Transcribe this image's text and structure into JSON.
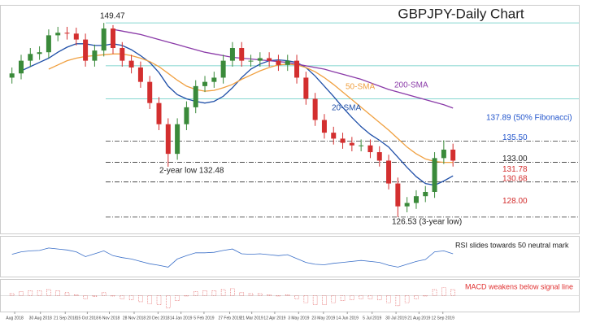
{
  "chart_data": {
    "type": "candlestick",
    "title": "GBPJPY-Daily Chart",
    "xlim": [
      -1.3,
      61.7
    ],
    "ylim": [
      124.6,
      151.4
    ],
    "xticks": [
      {
        "value": 0.3,
        "label": "Aug 2018"
      },
      {
        "value": 3.1,
        "label": "30 Aug 2018"
      },
      {
        "value": 5.8,
        "label": "21 Sep 2018"
      },
      {
        "value": 8.2,
        "label": "15 Oct 2018"
      },
      {
        "value": 10.6,
        "label": "6 Nov 2018"
      },
      {
        "value": 13.3,
        "label": "28 Nov 2018"
      },
      {
        "value": 15.9,
        "label": "20 Dec 2018"
      },
      {
        "value": 18.4,
        "label": "14 Jan 2019"
      },
      {
        "value": 20.9,
        "label": "5 Feb 2019"
      },
      {
        "value": 23.7,
        "label": "27 Feb 2019"
      },
      {
        "value": 26.1,
        "label": "21 Mar 2019"
      },
      {
        "value": 28.6,
        "label": "12 Apr 2019"
      },
      {
        "value": 31.2,
        "label": "3 May 2019"
      },
      {
        "value": 33.9,
        "label": "23 May 2019"
      },
      {
        "value": 36.5,
        "label": "14 Jun 2019"
      },
      {
        "value": 39.2,
        "label": "5 Jul 2019"
      },
      {
        "value": 41.8,
        "label": "30 Jul 2019"
      },
      {
        "value": 44.3,
        "label": "21 Aug 2019"
      },
      {
        "value": 46.9,
        "label": "12 Sep 2019"
      }
    ],
    "candles": {
      "up_color": "#3a8a3a",
      "down_color": "#d32f2f",
      "open": [
        143,
        143.5,
        145,
        145.8,
        146,
        148,
        148.3,
        148.2,
        147.5,
        145,
        146.2,
        148.8,
        146.5,
        145,
        144.2,
        142.5,
        140,
        137.5,
        134,
        137.5,
        139.5,
        142,
        142.5,
        143,
        145,
        146.5,
        145,
        145,
        145.3,
        145,
        144.5,
        145,
        143,
        140.5,
        138,
        136.5,
        135.8,
        135.3,
        135,
        135,
        134.2,
        133.2,
        130.5,
        127.8,
        128.2,
        129,
        129.5,
        133.5,
        134.5
      ],
      "high": [
        144.2,
        145.7,
        146.5,
        146.7,
        148.7,
        149,
        149,
        148.9,
        148.2,
        146.9,
        149.47,
        149.2,
        147.2,
        145.7,
        144.9,
        143.2,
        140.7,
        138.2,
        138.2,
        140.2,
        142.7,
        143.2,
        143.7,
        145.7,
        147.2,
        147.2,
        145.7,
        146,
        146,
        145.7,
        145.7,
        145.7,
        143.7,
        141.2,
        138.7,
        137.2,
        136.5,
        136,
        135.7,
        135.7,
        134.9,
        133.9,
        131.2,
        128.9,
        129.7,
        130.2,
        134.2,
        135.6,
        135.2
      ],
      "low": [
        142.3,
        142.8,
        144.3,
        145.1,
        145.3,
        147.3,
        147.5,
        146.8,
        144.3,
        144.3,
        145.5,
        145.8,
        144.3,
        143.5,
        141.8,
        139.3,
        136.8,
        132.48,
        133.3,
        136.8,
        138.8,
        141.3,
        141.8,
        142.3,
        144.3,
        144.3,
        144.3,
        144.3,
        144.3,
        143.8,
        143.8,
        142.3,
        139.8,
        137.3,
        135.8,
        135.1,
        134.6,
        134.3,
        134.3,
        133.5,
        132.5,
        129.8,
        126.53,
        127.1,
        127.5,
        128.3,
        128.8,
        132.8,
        132.5
      ],
      "close": [
        143.5,
        145,
        145.8,
        146,
        148,
        148.3,
        148.2,
        147.5,
        145,
        146.2,
        148.8,
        146.5,
        145,
        144.2,
        142.5,
        140,
        137.5,
        134,
        137.5,
        139.5,
        142,
        142.5,
        143,
        145,
        146.5,
        145,
        145,
        145.3,
        145,
        144.5,
        145,
        143,
        140.5,
        138,
        136.5,
        135.8,
        135.3,
        135,
        135,
        134.2,
        133.2,
        130.5,
        127.8,
        128.2,
        129,
        129.5,
        133.5,
        134.5,
        133.2
      ]
    },
    "series": [
      {
        "name": "20-SMA",
        "color": "#1f4fa8",
        "values": [
          null,
          143.8,
          144.3,
          144.8,
          145.3,
          146,
          146.6,
          147,
          147,
          146.8,
          146.8,
          147,
          146.8,
          146.3,
          145.6,
          144.8,
          143.6,
          142,
          141,
          140.5,
          140.2,
          140,
          140.2,
          140.8,
          141.8,
          143,
          144,
          144.6,
          145,
          145.1,
          145,
          144.8,
          144.2,
          143.2,
          142,
          140.8,
          139.5,
          138.3,
          137.2,
          136.3,
          135.6,
          134.8,
          133.6,
          132.4,
          131.3,
          130.5,
          130.3,
          130.8,
          131.4
        ]
      },
      {
        "name": "50-SMA",
        "color": "#f0a040",
        "values": [
          null,
          null,
          null,
          null,
          144,
          144.5,
          145,
          145.3,
          145.5,
          145.6,
          145.7,
          145.8,
          145.8,
          145.6,
          145.3,
          144.9,
          144.3,
          143.5,
          142.7,
          142,
          141.6,
          141.4,
          141.5,
          141.8,
          142.2,
          142.8,
          143.3,
          143.8,
          144.2,
          144.5,
          144.6,
          144.5,
          144.2,
          143.7,
          143,
          142.2,
          141.3,
          140.4,
          139.5,
          138.6,
          137.7,
          136.8,
          135.8,
          134.8,
          134,
          133.4,
          133.1,
          133,
          133
        ]
      },
      {
        "name": "200-SMA",
        "color": "#8a3aa8",
        "values": [
          null,
          null,
          null,
          null,
          null,
          null,
          null,
          null,
          null,
          null,
          null,
          148.7,
          148.5,
          148.3,
          148.1,
          147.8,
          147.5,
          147.2,
          146.9,
          146.6,
          146.3,
          146,
          145.8,
          145.6,
          145.4,
          145.3,
          145.2,
          145.1,
          145,
          144.9,
          144.8,
          144.6,
          144.4,
          144.2,
          144,
          143.7,
          143.4,
          143.1,
          142.8,
          142.4,
          142,
          141.6,
          141.3,
          141,
          140.7,
          140.4,
          140.1,
          139.8,
          139.4
        ]
      }
    ],
    "fib_lines": {
      "color": "#5cc8c0",
      "values": [
        149.47,
        144.4,
        140.5
      ]
    },
    "levels": [
      {
        "value": 137.89,
        "label": "137.89 (50% Fibonacci)",
        "color": "#2255cc",
        "line": false
      },
      {
        "value": 135.5,
        "label": "135.50",
        "color": "#2255cc",
        "line": true
      },
      {
        "value": 133,
        "label": "133.00",
        "color": "#222222",
        "line": true
      },
      {
        "value": 131.78,
        "label": "131.78",
        "color": "#d32f2f",
        "line": false
      },
      {
        "value": 130.68,
        "label": "130.68",
        "color": "#d32f2f",
        "line": true
      },
      {
        "value": 128,
        "label": "128.00",
        "color": "#d32f2f",
        "line": false
      },
      {
        "value": 126.53,
        "label": "",
        "color": "#222222",
        "line": true
      }
    ],
    "annotations": {
      "high": "149.47",
      "low2": "2-year low 132.48",
      "low3": "126.53 (3-year low)"
    },
    "rsi": {
      "color": "#3a6fc8",
      "ylim": [
        10,
        90
      ],
      "label": "RSI slides towards 50 neutral mark",
      "values": [
        55,
        60,
        62,
        63,
        68,
        66,
        64,
        60,
        50,
        56,
        62,
        52,
        48,
        45,
        40,
        35,
        32,
        28,
        45,
        52,
        58,
        58,
        59,
        63,
        66,
        56,
        55,
        56,
        54,
        52,
        54,
        46,
        38,
        34,
        33,
        36,
        38,
        40,
        42,
        40,
        38,
        32,
        28,
        34,
        40,
        44,
        60,
        62,
        56
      ]
    },
    "macd": {
      "color": "#e05050",
      "ylim": [
        -1.5,
        1.5
      ],
      "label": "MACD weakens below signal line",
      "values": [
        0.2,
        0.4,
        0.5,
        0.5,
        0.6,
        0.5,
        0.3,
        0.1,
        -0.3,
        -0.1,
        0.3,
        0,
        -0.3,
        -0.4,
        -0.6,
        -0.8,
        -0.9,
        -1.2,
        -0.5,
        0,
        0.4,
        0.5,
        0.5,
        0.6,
        0.7,
        0.3,
        0.2,
        0.2,
        0.1,
        0,
        0.1,
        -0.3,
        -0.7,
        -0.9,
        -0.9,
        -0.7,
        -0.5,
        -0.4,
        -0.3,
        -0.3,
        -0.4,
        -0.7,
        -1,
        -0.7,
        -0.3,
        0,
        0.6,
        0.8,
        0.6
      ]
    }
  }
}
